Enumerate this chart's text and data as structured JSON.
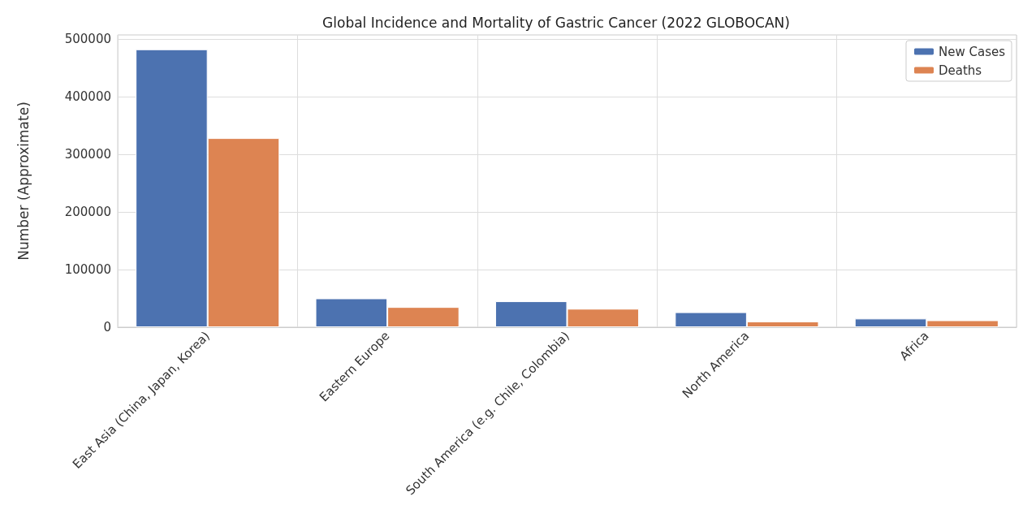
{
  "chart_data": {
    "type": "bar",
    "title": "Global Incidence and Mortality of Gastric Cancer (2022 GLOBOCAN)",
    "ylabel": "Number (Approximate)",
    "categories": [
      "East Asia (China, Japan, Korea)",
      "Eastern Europe",
      "South America (e.g. Chile, Colombia)",
      "North America",
      "Africa"
    ],
    "series": [
      {
        "name": "New Cases",
        "color": "#4c72b0",
        "values": [
          482000,
          50000,
          45000,
          26000,
          15000
        ]
      },
      {
        "name": "Deaths",
        "color": "#dd8452",
        "values": [
          328000,
          35000,
          32000,
          10000,
          12000
        ]
      }
    ],
    "ylim": [
      0,
      507000
    ],
    "yticks": [
      0,
      100000,
      200000,
      300000,
      400000,
      500000
    ],
    "grid": true,
    "legend": "top right"
  }
}
